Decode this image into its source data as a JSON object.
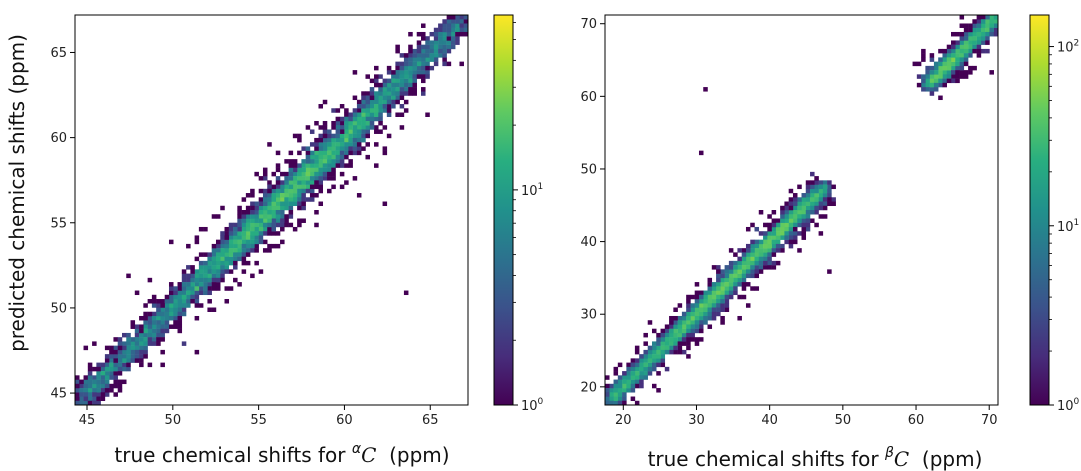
{
  "figure": {
    "ylabel": "predicted chemical shifts (ppm)"
  },
  "chart_data": [
    {
      "type": "heatmap",
      "subtype": "2d-histogram",
      "xlabel_prefix": "true chemical shifts for ",
      "xlabel_symbol_sup": "α",
      "xlabel_symbol": "C",
      "xlabel_suffix": "  (ppm)",
      "xlim": [
        44.3,
        67.2
      ],
      "ylim": [
        44.3,
        67.2
      ],
      "xticks": [
        45,
        50,
        55,
        60,
        65
      ],
      "yticks": [
        45,
        50,
        55,
        60,
        65
      ],
      "colorbar": {
        "scale": "log",
        "range": [
          1,
          65
        ],
        "ticks": [
          {
            "value": 1,
            "base": "10",
            "exp": "0"
          },
          {
            "value": 10,
            "base": "10",
            "exp": "1"
          }
        ]
      },
      "distribution": {
        "diagonal_from": 44.5,
        "diagonal_to": 67.0,
        "density_peaks": [
          55.0,
          59.0
        ],
        "outliers": [
          [
            47.5,
            52.0
          ],
          [
            60.8,
            56.5
          ],
          [
            63.5,
            51.0
          ],
          [
            62.3,
            56.2
          ],
          [
            50.0,
            54.0
          ]
        ]
      }
    },
    {
      "type": "heatmap",
      "subtype": "2d-histogram",
      "xlabel_prefix": "true chemical shifts for ",
      "xlabel_symbol_sup": "β",
      "xlabel_symbol": "C",
      "xlabel_suffix": "  (ppm)",
      "xlim": [
        17.5,
        71.2
      ],
      "ylim": [
        17.5,
        71.2
      ],
      "xticks": [
        20,
        30,
        40,
        50,
        60,
        70
      ],
      "yticks": [
        20,
        30,
        40,
        50,
        60,
        70
      ],
      "colorbar": {
        "scale": "log",
        "range": [
          1,
          150
        ],
        "ticks": [
          {
            "value": 1,
            "base": "10",
            "exp": "0"
          },
          {
            "value": 10,
            "base": "10",
            "exp": "1"
          },
          {
            "value": 100,
            "base": "10",
            "exp": "2"
          }
        ]
      },
      "distribution": {
        "segments": [
          [
            18.0,
            47.5
          ],
          [
            61.5,
            71.0
          ]
        ],
        "density_peaks": [
          32.0,
          41.0,
          64.0
        ],
        "outliers": [
          [
            31.0,
            61.0
          ],
          [
            30.5,
            52.0
          ],
          [
            48.2,
            36.0
          ],
          [
            70.5,
            63.5
          ],
          [
            47.0,
            41.0
          ]
        ]
      }
    }
  ]
}
